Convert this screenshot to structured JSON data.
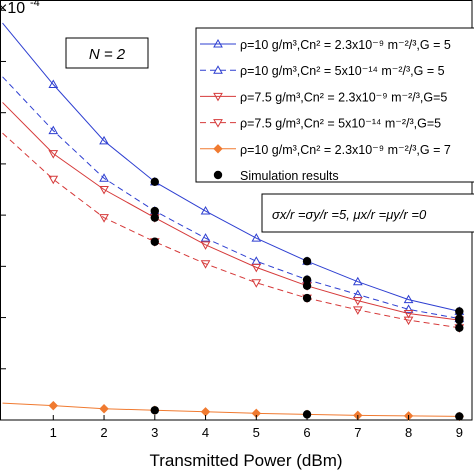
{
  "chart_data": {
    "type": "line",
    "xlabel": "Transmitted Power (dBm)",
    "ylabel": "",
    "y_exponent_label": "×10",
    "y_exponent_power": "-4",
    "xlim": [
      0,
      9
    ],
    "ylim": [
      0,
      8.2
    ],
    "x_ticks": [
      1,
      2,
      3,
      4,
      5,
      6,
      7,
      8,
      9
    ],
    "x_tick_labels": [
      "1",
      "2",
      "3",
      "4",
      "5",
      "6",
      "7",
      "8",
      "9"
    ],
    "grid": false,
    "legend_position": "top-right",
    "annotations": {
      "n_label": "N = 2",
      "condition_label": "σx/r =σy/r =5, μx/r =μy/r =0"
    },
    "series": [
      {
        "name": "ρ=10 g/m³,Cn² = 2.3x10⁻⁹ m⁻²/³,G = 5",
        "color": "#2e3fd1",
        "dash": "solid",
        "marker": "triangle-up",
        "x": [
          0,
          1,
          2,
          3,
          4,
          5,
          6,
          7,
          8,
          9
        ],
        "y": [
          7.75,
          6.55,
          5.45,
          4.65,
          4.08,
          3.55,
          3.1,
          2.7,
          2.35,
          2.12
        ]
      },
      {
        "name": "ρ=10 g/m³,Cn² = 5x10⁻¹⁴ m⁻²/³,G = 5",
        "color": "#2e3fd1",
        "dash": "dashed",
        "marker": "triangle-up",
        "x": [
          0,
          1,
          2,
          3,
          4,
          5,
          6,
          7,
          8,
          9
        ],
        "y": [
          6.7,
          5.65,
          4.72,
          4.08,
          3.55,
          3.1,
          2.74,
          2.45,
          2.16,
          1.98
        ]
      },
      {
        "name": "ρ=7.5 g/m³,Cn² = 2.3x10⁻⁹ m⁻²/³,G=5",
        "color": "#d63a3a",
        "dash": "solid",
        "marker": "triangle-down",
        "x": [
          0,
          1,
          2,
          3,
          4,
          5,
          6,
          7,
          8,
          9
        ],
        "y": [
          6.2,
          5.2,
          4.5,
          3.95,
          3.42,
          2.98,
          2.62,
          2.33,
          2.08,
          1.95
        ]
      },
      {
        "name": "ρ=7.5 g/m³,Cn² = 5x10⁻¹⁴ m⁻²/³,G=5",
        "color": "#d63a3a",
        "dash": "dashed",
        "marker": "triangle-down",
        "x": [
          0,
          1,
          2,
          3,
          4,
          5,
          6,
          7,
          8,
          9
        ],
        "y": [
          5.6,
          4.7,
          3.95,
          3.48,
          3.05,
          2.68,
          2.38,
          2.15,
          1.95,
          1.8
        ]
      },
      {
        "name": "ρ=10 g/m³,Cn² = 2.3x10⁻⁹ m⁻²/³,G = 7",
        "color": "#f07a30",
        "dash": "solid",
        "marker": "diamond",
        "x": [
          0,
          1,
          2,
          3,
          4,
          5,
          6,
          7,
          8,
          9
        ],
        "y": [
          0.33,
          0.28,
          0.22,
          0.19,
          0.16,
          0.13,
          0.11,
          0.09,
          0.08,
          0.07
        ]
      },
      {
        "name": "Simulation results",
        "color": "#000000",
        "dash": "none",
        "marker": "circle",
        "x": [
          3,
          3,
          3,
          3,
          6,
          6,
          6,
          6,
          9,
          9,
          9,
          9,
          3,
          6,
          9
        ],
        "y": [
          4.65,
          4.08,
          3.95,
          3.48,
          3.1,
          2.74,
          2.62,
          2.38,
          2.12,
          1.98,
          1.95,
          1.8,
          0.19,
          0.11,
          0.07
        ]
      }
    ]
  }
}
